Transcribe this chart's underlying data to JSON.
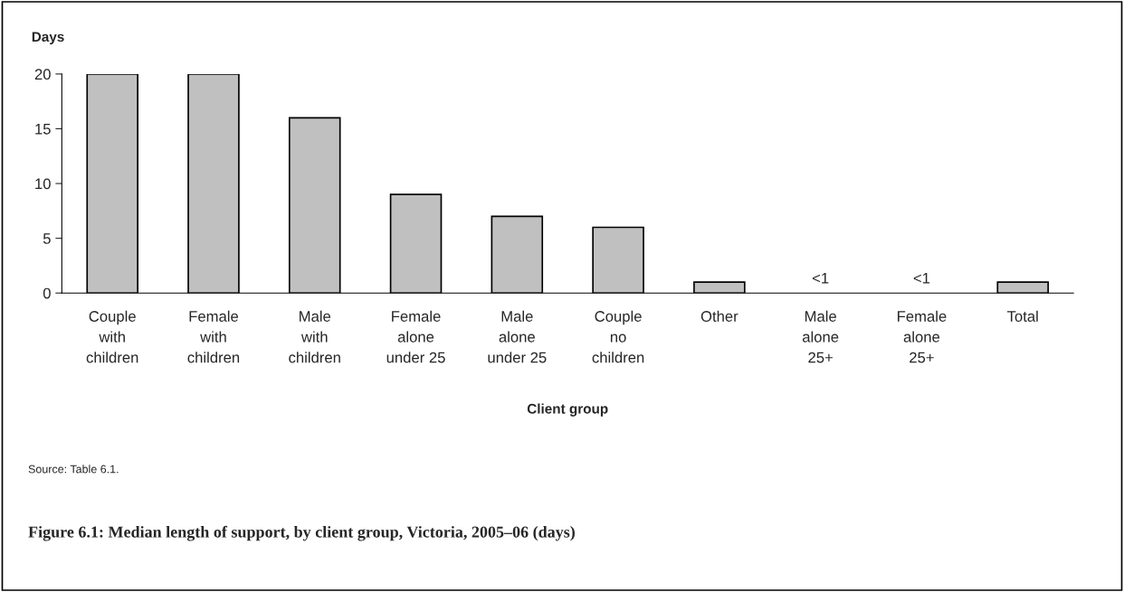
{
  "chart_data": {
    "type": "bar",
    "title": "Figure 6.1: Median length of support, by client group, Victoria, 2005–06 (days)",
    "xlabel": "Client group",
    "ylabel": "Days",
    "categories": [
      "Couple\nwith\nchildren",
      "Female\nwith\nchildren",
      "Male\nwith\nchildren",
      "Female\nalone\nunder 25",
      "Male\nalone\nunder 25",
      "Couple\nno\nchildren",
      "Other",
      "Male\nalone\n25+",
      "Female\nalone\n25+",
      "Total"
    ],
    "values": [
      20,
      20,
      16,
      9,
      7,
      6,
      1,
      0,
      0,
      1
    ],
    "value_labels": [
      null,
      null,
      null,
      null,
      null,
      null,
      null,
      "<1",
      "<1",
      null
    ],
    "color": "#c0c0c0",
    "ylim": [
      0,
      20
    ],
    "yticks": [
      0,
      5,
      10,
      15,
      20
    ],
    "grid": false,
    "legend": false,
    "annotations": [
      "Source: Table 6.1."
    ]
  }
}
